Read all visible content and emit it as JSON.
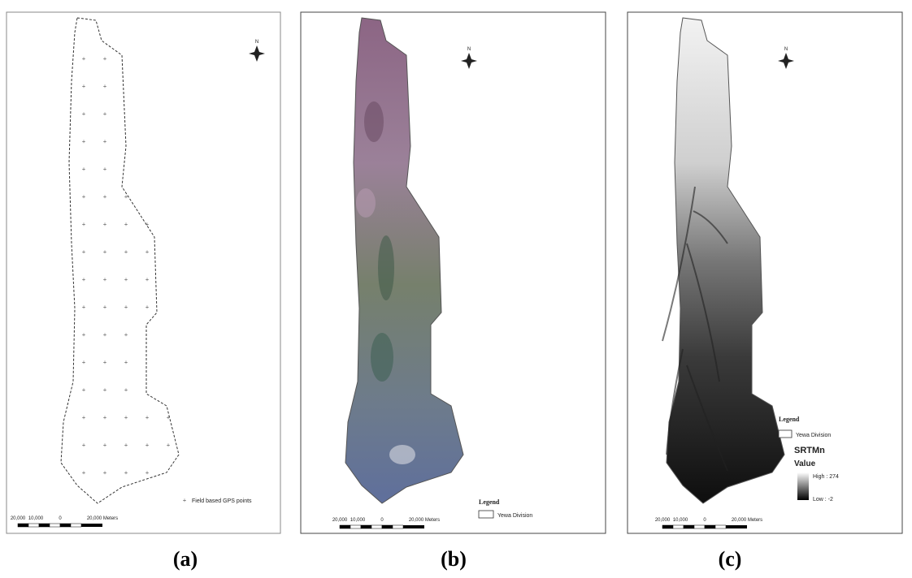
{
  "panels": [
    {
      "label": "(a)",
      "legend": {
        "items": [
          "Field based GPS points"
        ]
      },
      "scale_labels": [
        "20,000",
        "10,000",
        "0",
        "20,000 Meters"
      ],
      "north": "N"
    },
    {
      "label": "(b)",
      "legend": {
        "title": "Legend",
        "items": [
          "Yewa Division"
        ]
      },
      "scale_labels": [
        "20,000",
        "10,000",
        "0",
        "20,000 Meters"
      ],
      "north": "N"
    },
    {
      "label": "(c)",
      "legend": {
        "title": "Legend",
        "items": [
          "Yewa Division"
        ],
        "raster_title": "SRTMn",
        "value_title": "Value",
        "high": "High : 274",
        "low": "Low : -2"
      },
      "scale_labels": [
        "20,000",
        "10,000",
        "0",
        "20,000 Meters"
      ],
      "north": "N"
    }
  ]
}
